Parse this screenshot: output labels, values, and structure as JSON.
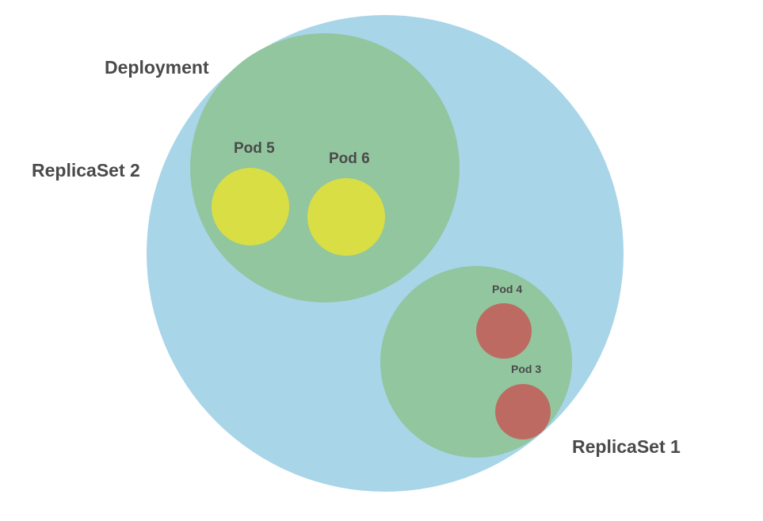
{
  "labels": {
    "deployment": "Deployment",
    "replicaset_2": "ReplicaSet 2",
    "replicaset_1": "ReplicaSet 1",
    "pod_5": "Pod 5",
    "pod_6": "Pod 6",
    "pod_4": "Pod 4",
    "pod_3": "Pod 3"
  },
  "colors": {
    "deployment": "#a8d5e8",
    "replicaset": "#92c69e",
    "pod_new": "#d9de45",
    "pod_old": "#bd6b62",
    "text": "#4a4a4a"
  }
}
